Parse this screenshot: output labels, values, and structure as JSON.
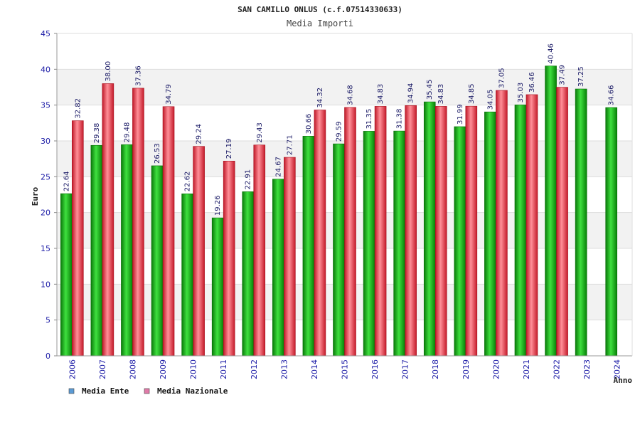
{
  "chart_data": {
    "type": "bar",
    "title": "SAN CAMILLO ONLUS (c.f.07514330633)",
    "subtitle": "Media Importi",
    "xlabel": "Anno",
    "ylabel": "Euro",
    "ylim": [
      0,
      45
    ],
    "yticks": [
      "0",
      "5",
      "10",
      "15",
      "20",
      "25",
      "30",
      "35",
      "40",
      "45"
    ],
    "categories": [
      "2006",
      "2007",
      "2008",
      "2009",
      "2010",
      "2011",
      "2012",
      "2013",
      "2014",
      "2015",
      "2016",
      "2017",
      "2018",
      "2019",
      "2020",
      "2021",
      "2022",
      "2023",
      "2024"
    ],
    "series": [
      {
        "name": "Media Ente",
        "color": "#1ec21e",
        "values": [
          22.64,
          29.38,
          29.48,
          26.53,
          22.62,
          19.26,
          22.91,
          24.67,
          30.66,
          29.59,
          31.35,
          31.38,
          35.45,
          31.99,
          34.05,
          35.03,
          40.46,
          37.25,
          34.66
        ],
        "labels": [
          "22.64",
          "29.38",
          "29.48",
          "26.53",
          "22.62",
          "19.26",
          "22.91",
          "24.67",
          "30.66",
          "29.59",
          "31.35",
          "31.38",
          "35.45",
          "31.99",
          "34.05",
          "35.03",
          "40.46",
          "37.25",
          "34.66"
        ]
      },
      {
        "name": "Media Nazionale",
        "color": "#e83c48",
        "values": [
          32.82,
          38.0,
          37.36,
          34.79,
          29.24,
          27.19,
          29.43,
          27.71,
          34.32,
          34.68,
          34.83,
          34.94,
          34.83,
          34.85,
          37.05,
          36.46,
          37.49,
          null,
          null
        ],
        "labels": [
          "32.82",
          "38.00",
          "37.36",
          "34.79",
          "29.24",
          "27.19",
          "29.43",
          "27.71",
          "34.32",
          "34.68",
          "34.83",
          "34.94",
          "34.83",
          "34.85",
          "37.05",
          "36.46",
          "37.49",
          null,
          null
        ]
      }
    ],
    "legend": [
      {
        "label": "Media Ente",
        "swatch_color": "#5b9bd5"
      },
      {
        "label": "Media Nazionale",
        "swatch_color": "#e07aa8"
      }
    ],
    "legend_position": "bottom-left",
    "grid": true
  }
}
